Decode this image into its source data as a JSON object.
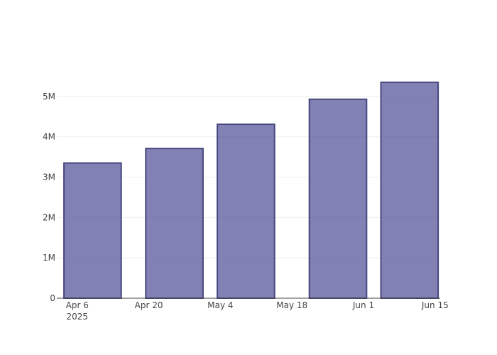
{
  "chart_data": {
    "type": "bar",
    "x": [
      "2025-04-09",
      "2025-04-25",
      "2025-05-09",
      "2025-05-27",
      "2025-06-10"
    ],
    "values": [
      3350000,
      3710000,
      4310000,
      4930000,
      5350000
    ],
    "color": "#4c4c94",
    "line_color": "#47477f",
    "xlim": [
      "2025-04-02",
      "2025-06-16"
    ],
    "xticks": [
      {
        "value": "2025-04-06",
        "label": "Apr 6"
      },
      {
        "value": "2025-04-20",
        "label": "Apr 20"
      },
      {
        "value": "2025-05-04",
        "label": "May 4"
      },
      {
        "value": "2025-05-18",
        "label": "May 18"
      },
      {
        "value": "2025-06-01",
        "label": "Jun 1"
      },
      {
        "value": "2025-06-15",
        "label": "Jun 15"
      }
    ],
    "x_year_label": "2025",
    "ylim": [
      0,
      5630000
    ],
    "yticks": [
      0,
      {
        "value": 1000000,
        "label": "1M"
      },
      {
        "value": 2000000,
        "label": "2M"
      },
      {
        "value": 3000000,
        "label": "3M"
      },
      {
        "value": 4000000,
        "label": "4M"
      },
      {
        "value": 5000000,
        "label": "5M"
      }
    ],
    "grid": true
  }
}
